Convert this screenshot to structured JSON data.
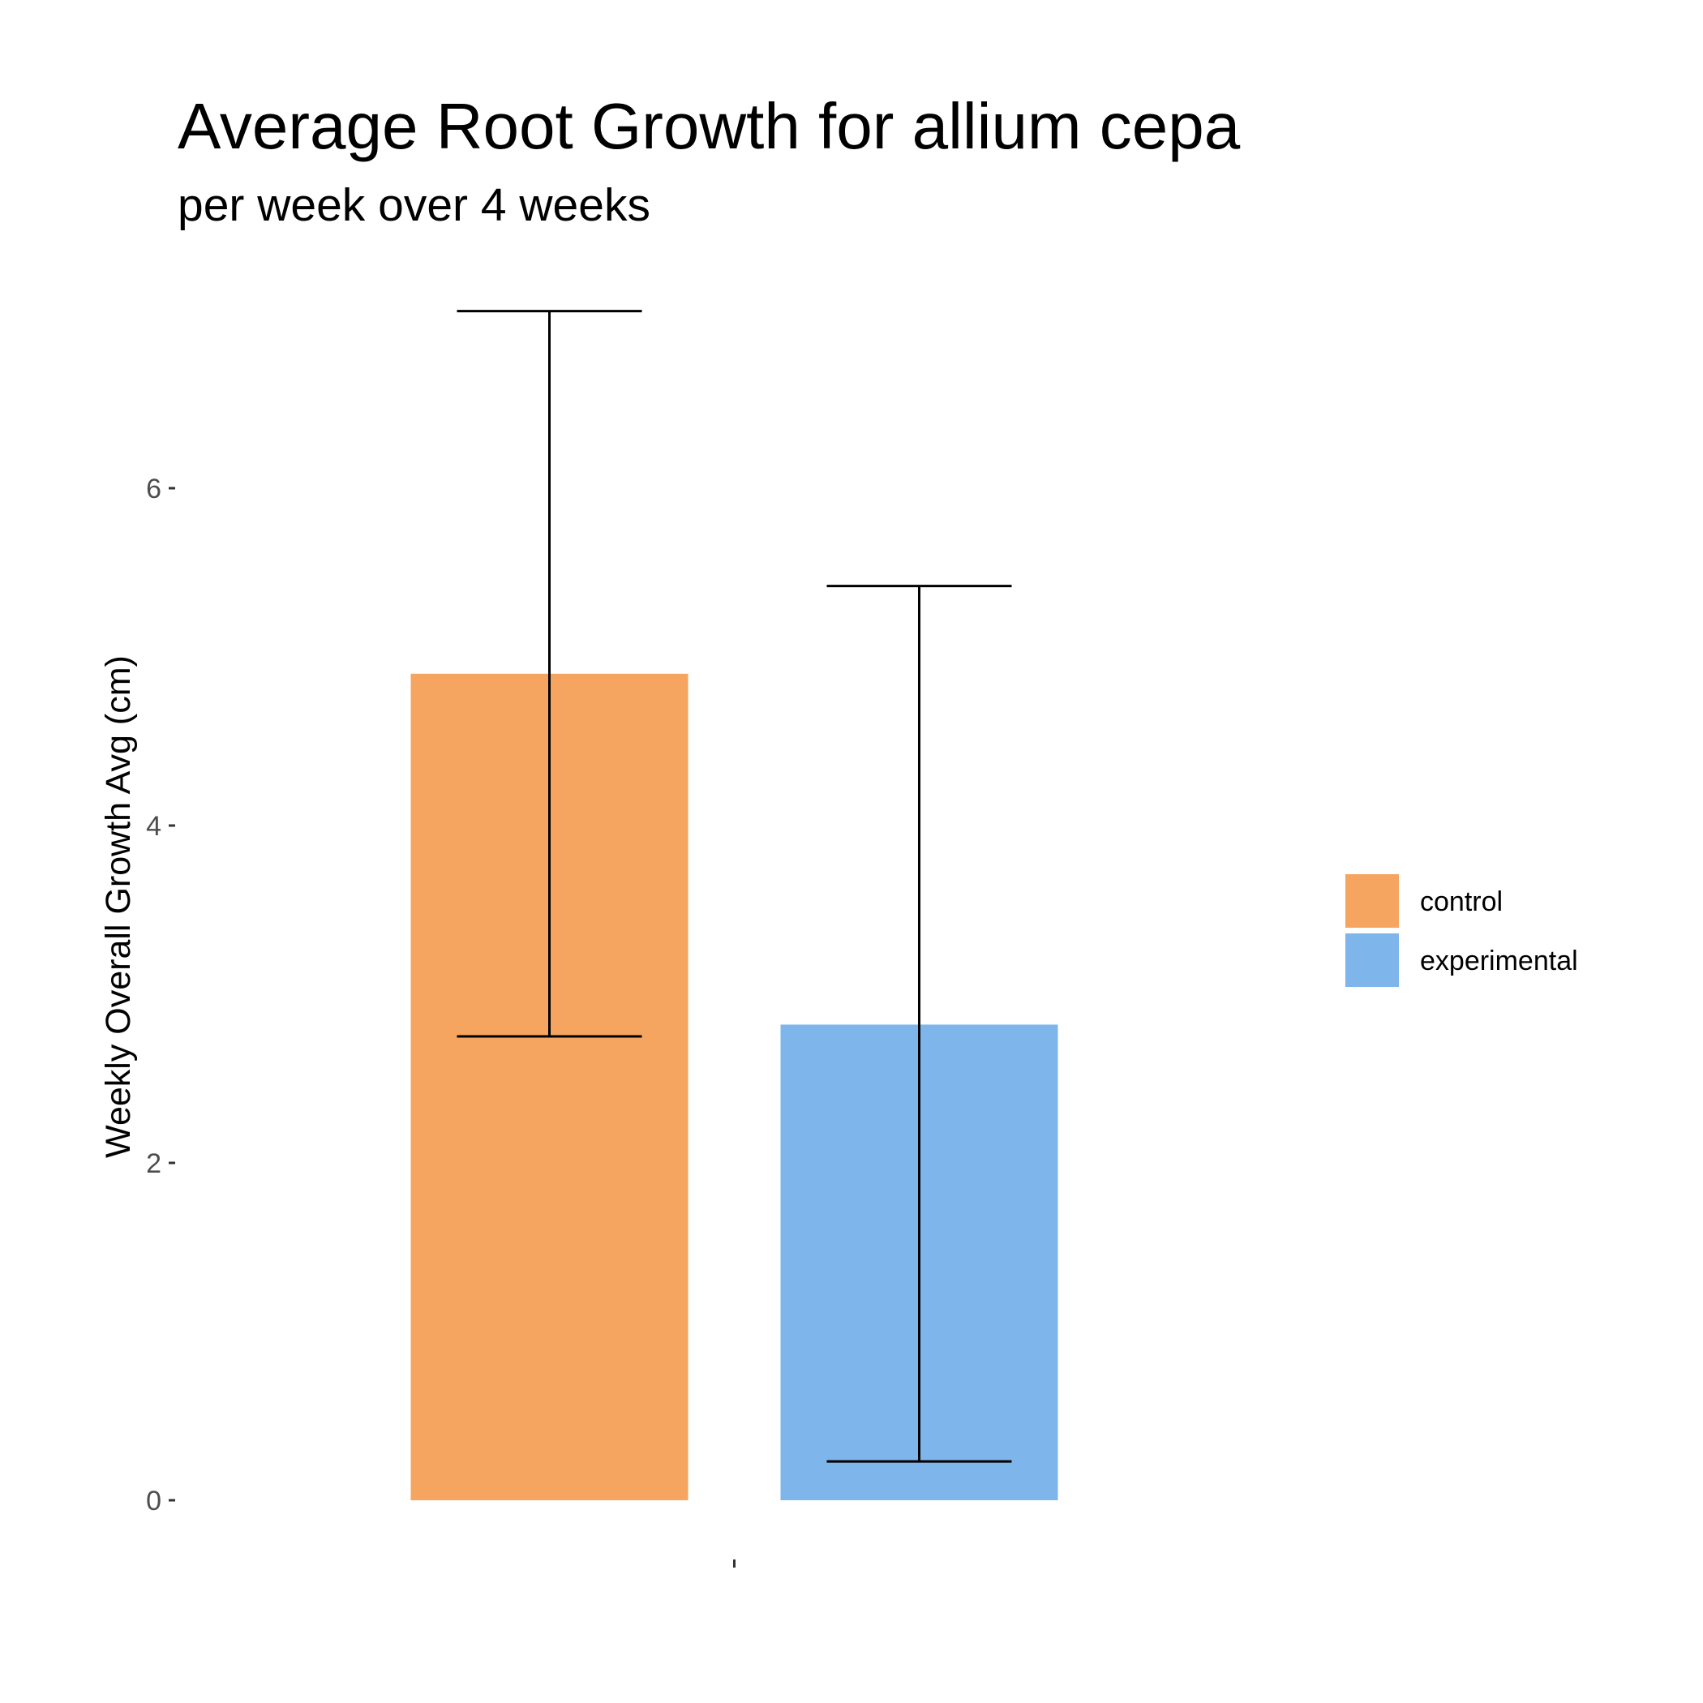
{
  "chart_data": {
    "type": "bar",
    "title": "Average Root Growth for allium cepa",
    "subtitle": "per week over 4 weeks",
    "xlabel": "",
    "ylabel": "Weekly Overall Growth Avg (cm)",
    "ylim": [
      0,
      7.2
    ],
    "y_ticks": [
      0,
      2,
      4,
      6
    ],
    "y_tick_labels": [
      "0",
      "2",
      "4",
      "6"
    ],
    "x_categories": [
      ""
    ],
    "grid": false,
    "legend_position": "right",
    "series": [
      {
        "name": "control",
        "value": 4.9,
        "error_low": 2.75,
        "error_high": 7.05,
        "color": "#F5A55F"
      },
      {
        "name": "experimental",
        "value": 2.82,
        "error_low": 0.23,
        "error_high": 5.42,
        "color": "#7EB5EA"
      }
    ]
  }
}
